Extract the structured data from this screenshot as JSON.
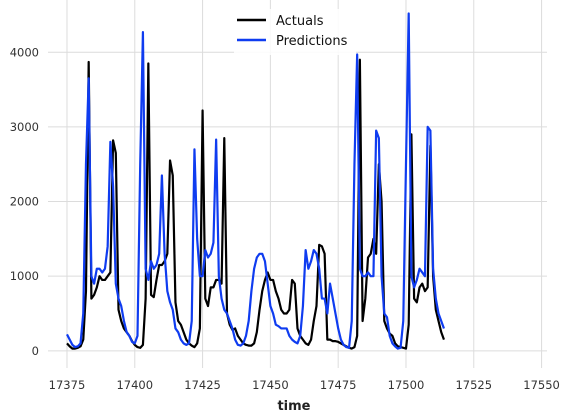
{
  "chart_data": {
    "type": "line",
    "xlabel": "time",
    "ylabel": "",
    "xlim": [
      17368,
      17552
    ],
    "ylim": [
      -230,
      4700
    ],
    "xticks": [
      17375,
      17400,
      17425,
      17450,
      17475,
      17500,
      17525,
      17550
    ],
    "yticks": [
      0,
      1000,
      2000,
      3000,
      4000
    ],
    "grid": true,
    "legend": "top-center",
    "series": [
      {
        "name": "Actuals",
        "color": "#000000",
        "points": [
          [
            17375,
            100
          ],
          [
            17376,
            60
          ],
          [
            17377,
            30
          ],
          [
            17378,
            30
          ],
          [
            17379,
            40
          ],
          [
            17380,
            60
          ],
          [
            17381,
            150
          ],
          [
            17382,
            800
          ],
          [
            17383,
            3870
          ],
          [
            17384,
            700
          ],
          [
            17385,
            750
          ],
          [
            17386,
            850
          ],
          [
            17387,
            1000
          ],
          [
            17388,
            950
          ],
          [
            17389,
            950
          ],
          [
            17390,
            1000
          ],
          [
            17391,
            1050
          ],
          [
            17392,
            2820
          ],
          [
            17393,
            2650
          ],
          [
            17394,
            550
          ],
          [
            17395,
            400
          ],
          [
            17396,
            300
          ],
          [
            17397,
            250
          ],
          [
            17398,
            200
          ],
          [
            17399,
            130
          ],
          [
            17400,
            80
          ],
          [
            17401,
            50
          ],
          [
            17402,
            40
          ],
          [
            17403,
            80
          ],
          [
            17404,
            700
          ],
          [
            17405,
            3850
          ],
          [
            17406,
            750
          ],
          [
            17407,
            720
          ],
          [
            17408,
            950
          ],
          [
            17409,
            1150
          ],
          [
            17410,
            1150
          ],
          [
            17411,
            1200
          ],
          [
            17412,
            1300
          ],
          [
            17413,
            2550
          ],
          [
            17414,
            2350
          ],
          [
            17415,
            650
          ],
          [
            17416,
            400
          ],
          [
            17417,
            350
          ],
          [
            17418,
            250
          ],
          [
            17419,
            150
          ],
          [
            17420,
            100
          ],
          [
            17421,
            70
          ],
          [
            17422,
            50
          ],
          [
            17423,
            100
          ],
          [
            17424,
            300
          ],
          [
            17425,
            3220
          ],
          [
            17426,
            700
          ],
          [
            17427,
            600
          ],
          [
            17428,
            850
          ],
          [
            17429,
            850
          ],
          [
            17430,
            950
          ],
          [
            17431,
            950
          ],
          [
            17432,
            900
          ],
          [
            17433,
            2850
          ],
          [
            17434,
            500
          ],
          [
            17435,
            350
          ],
          [
            17436,
            280
          ],
          [
            17437,
            300
          ],
          [
            17438,
            200
          ],
          [
            17439,
            150
          ],
          [
            17440,
            100
          ],
          [
            17441,
            80
          ],
          [
            17442,
            70
          ],
          [
            17443,
            70
          ],
          [
            17444,
            100
          ],
          [
            17445,
            250
          ],
          [
            17446,
            550
          ],
          [
            17447,
            800
          ],
          [
            17448,
            950
          ],
          [
            17449,
            1050
          ],
          [
            17450,
            950
          ],
          [
            17451,
            950
          ],
          [
            17452,
            800
          ],
          [
            17453,
            700
          ],
          [
            17454,
            550
          ],
          [
            17455,
            500
          ],
          [
            17456,
            500
          ],
          [
            17457,
            550
          ],
          [
            17458,
            950
          ],
          [
            17459,
            900
          ],
          [
            17460,
            300
          ],
          [
            17461,
            200
          ],
          [
            17462,
            150
          ],
          [
            17463,
            100
          ],
          [
            17464,
            80
          ],
          [
            17465,
            150
          ],
          [
            17466,
            400
          ],
          [
            17467,
            600
          ],
          [
            17468,
            1420
          ],
          [
            17469,
            1400
          ],
          [
            17470,
            1300
          ],
          [
            17471,
            150
          ],
          [
            17472,
            150
          ],
          [
            17473,
            130
          ],
          [
            17474,
            130
          ],
          [
            17475,
            120
          ],
          [
            17476,
            100
          ],
          [
            17477,
            80
          ],
          [
            17478,
            60
          ],
          [
            17479,
            40
          ],
          [
            17480,
            30
          ],
          [
            17481,
            50
          ],
          [
            17482,
            200
          ],
          [
            17483,
            3900
          ],
          [
            17484,
            400
          ],
          [
            17485,
            700
          ],
          [
            17486,
            1250
          ],
          [
            17487,
            1300
          ],
          [
            17488,
            1500
          ],
          [
            17489,
            1300
          ],
          [
            17490,
            2500
          ],
          [
            17491,
            2000
          ],
          [
            17492,
            400
          ],
          [
            17493,
            300
          ],
          [
            17494,
            230
          ],
          [
            17495,
            200
          ],
          [
            17496,
            100
          ],
          [
            17497,
            60
          ],
          [
            17498,
            50
          ],
          [
            17499,
            40
          ],
          [
            17500,
            30
          ],
          [
            17501,
            350
          ],
          [
            17502,
            2900
          ],
          [
            17503,
            700
          ],
          [
            17504,
            650
          ],
          [
            17505,
            850
          ],
          [
            17506,
            900
          ],
          [
            17507,
            800
          ],
          [
            17508,
            850
          ],
          [
            17509,
            2750
          ],
          [
            17510,
            1000
          ],
          [
            17511,
            550
          ],
          [
            17512,
            400
          ],
          [
            17513,
            250
          ],
          [
            17514,
            150
          ]
        ]
      },
      {
        "name": "Predictions",
        "color": "#0f3cf0",
        "points": [
          [
            17375,
            220
          ],
          [
            17376,
            150
          ],
          [
            17377,
            80
          ],
          [
            17378,
            50
          ],
          [
            17379,
            60
          ],
          [
            17380,
            100
          ],
          [
            17381,
            500
          ],
          [
            17382,
            2500
          ],
          [
            17383,
            3650
          ],
          [
            17384,
            1000
          ],
          [
            17385,
            900
          ],
          [
            17386,
            1100
          ],
          [
            17387,
            1100
          ],
          [
            17388,
            1050
          ],
          [
            17389,
            1100
          ],
          [
            17390,
            1400
          ],
          [
            17391,
            2800
          ],
          [
            17392,
            2200
          ],
          [
            17393,
            900
          ],
          [
            17394,
            700
          ],
          [
            17395,
            600
          ],
          [
            17396,
            400
          ],
          [
            17397,
            250
          ],
          [
            17398,
            200
          ],
          [
            17399,
            120
          ],
          [
            17400,
            100
          ],
          [
            17401,
            200
          ],
          [
            17402,
            2500
          ],
          [
            17403,
            4270
          ],
          [
            17404,
            1100
          ],
          [
            17405,
            950
          ],
          [
            17406,
            1200
          ],
          [
            17407,
            1100
          ],
          [
            17408,
            1150
          ],
          [
            17409,
            1300
          ],
          [
            17410,
            2350
          ],
          [
            17411,
            1300
          ],
          [
            17412,
            800
          ],
          [
            17413,
            650
          ],
          [
            17414,
            550
          ],
          [
            17415,
            300
          ],
          [
            17416,
            250
          ],
          [
            17417,
            150
          ],
          [
            17418,
            100
          ],
          [
            17419,
            80
          ],
          [
            17420,
            100
          ],
          [
            17421,
            400
          ],
          [
            17422,
            2700
          ],
          [
            17423,
            1500
          ],
          [
            17424,
            1000
          ],
          [
            17425,
            1000
          ],
          [
            17426,
            1350
          ],
          [
            17427,
            1250
          ],
          [
            17428,
            1300
          ],
          [
            17429,
            1450
          ],
          [
            17430,
            2830
          ],
          [
            17431,
            1000
          ],
          [
            17432,
            700
          ],
          [
            17433,
            550
          ],
          [
            17434,
            500
          ],
          [
            17435,
            400
          ],
          [
            17436,
            300
          ],
          [
            17437,
            150
          ],
          [
            17438,
            80
          ],
          [
            17439,
            70
          ],
          [
            17440,
            100
          ],
          [
            17441,
            200
          ],
          [
            17442,
            400
          ],
          [
            17443,
            800
          ],
          [
            17444,
            1100
          ],
          [
            17445,
            1250
          ],
          [
            17446,
            1300
          ],
          [
            17447,
            1300
          ],
          [
            17448,
            1200
          ],
          [
            17449,
            900
          ],
          [
            17450,
            600
          ],
          [
            17451,
            500
          ],
          [
            17452,
            350
          ],
          [
            17453,
            330
          ],
          [
            17454,
            300
          ],
          [
            17455,
            300
          ],
          [
            17456,
            300
          ],
          [
            17457,
            200
          ],
          [
            17458,
            150
          ],
          [
            17459,
            120
          ],
          [
            17460,
            100
          ],
          [
            17461,
            200
          ],
          [
            17462,
            600
          ],
          [
            17463,
            1350
          ],
          [
            17464,
            1100
          ],
          [
            17465,
            1200
          ],
          [
            17466,
            1350
          ],
          [
            17467,
            1300
          ],
          [
            17468,
            1100
          ],
          [
            17469,
            700
          ],
          [
            17470,
            700
          ],
          [
            17471,
            500
          ],
          [
            17472,
            900
          ],
          [
            17473,
            700
          ],
          [
            17474,
            500
          ],
          [
            17475,
            300
          ],
          [
            17476,
            150
          ],
          [
            17477,
            80
          ],
          [
            17478,
            50
          ],
          [
            17479,
            40
          ],
          [
            17480,
            400
          ],
          [
            17481,
            2500
          ],
          [
            17482,
            3970
          ],
          [
            17483,
            1100
          ],
          [
            17484,
            1000
          ],
          [
            17485,
            1000
          ],
          [
            17486,
            1050
          ],
          [
            17487,
            1000
          ],
          [
            17488,
            1000
          ],
          [
            17489,
            2950
          ],
          [
            17490,
            2850
          ],
          [
            17491,
            1000
          ],
          [
            17492,
            500
          ],
          [
            17493,
            450
          ],
          [
            17494,
            200
          ],
          [
            17495,
            100
          ],
          [
            17496,
            60
          ],
          [
            17497,
            30
          ],
          [
            17498,
            40
          ],
          [
            17499,
            400
          ],
          [
            17500,
            2500
          ],
          [
            17501,
            4520
          ],
          [
            17502,
            1000
          ],
          [
            17503,
            850
          ],
          [
            17504,
            950
          ],
          [
            17505,
            1100
          ],
          [
            17506,
            1050
          ],
          [
            17507,
            1000
          ],
          [
            17508,
            3000
          ],
          [
            17509,
            2950
          ],
          [
            17510,
            1100
          ],
          [
            17511,
            700
          ],
          [
            17512,
            500
          ],
          [
            17513,
            400
          ],
          [
            17514,
            300
          ]
        ]
      }
    ]
  }
}
